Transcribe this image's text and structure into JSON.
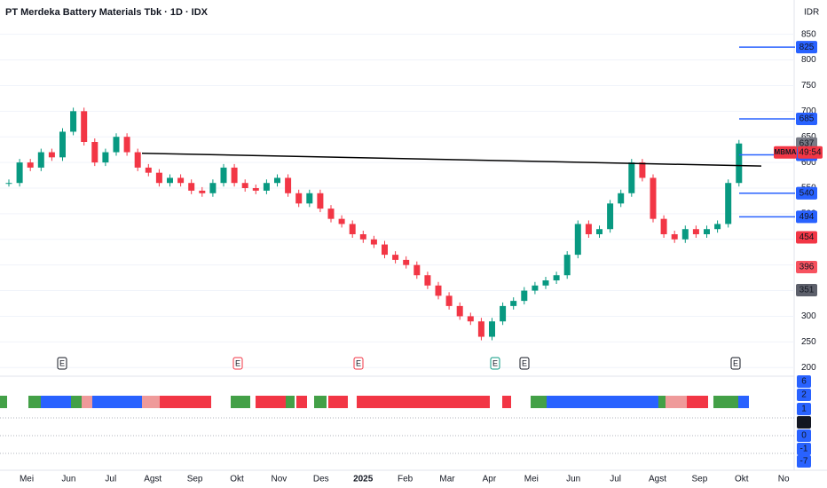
{
  "title": "PT Merdeka Battery Materials Tbk · 1D · IDX",
  "currency": "IDR",
  "symbol_badge": "MBMA",
  "countdown": "49:54",
  "earnings_markers": [
    "E",
    "E",
    "E",
    "E",
    "E",
    "E"
  ],
  "chart_data": {
    "type": "candlestick",
    "months": [
      "Mei",
      "Jun",
      "Jul",
      "Agst",
      "Sep",
      "Okt",
      "Nov",
      "Des",
      "2025",
      "Feb",
      "Mar",
      "Apr",
      "Mei",
      "Jun",
      "Jul",
      "Agst",
      "Sep",
      "Okt",
      "No"
    ],
    "values": [
      560,
      600,
      590,
      620,
      610,
      660,
      700,
      640,
      600,
      620,
      650,
      620,
      590,
      580,
      560,
      570,
      560,
      545,
      540,
      560,
      590,
      560,
      550,
      545,
      560,
      570,
      540,
      520,
      540,
      510,
      490,
      480,
      460,
      450,
      440,
      420,
      410,
      400,
      380,
      360,
      340,
      320,
      300,
      290,
      260,
      290,
      320,
      330,
      350,
      360,
      370,
      380,
      420,
      480,
      460,
      470,
      520,
      540,
      600,
      570,
      490,
      460,
      450,
      470,
      460,
      470,
      480,
      560,
      637
    ],
    "up_color": "#089981",
    "down_color": "#f23645",
    "ylim": [
      190,
      865
    ],
    "yticks": [
      200,
      250,
      300,
      350,
      400,
      450,
      500,
      550,
      600,
      650,
      700,
      750,
      800,
      850
    ],
    "trendline": {
      "values": [
        618,
        593
      ],
      "color": "#000000"
    },
    "price_labels": [
      {
        "value": 825,
        "color": "#2962ff"
      },
      {
        "value": 685,
        "color": "#2962ff"
      },
      {
        "value": 637,
        "color": "#787b86"
      },
      {
        "value": 615,
        "color": "#2962ff"
      },
      {
        "value": 540,
        "color": "#2962ff"
      },
      {
        "value": 540,
        "color": "#2962ff"
      },
      {
        "value": 494,
        "color": "#2962ff"
      },
      {
        "value": 454,
        "color": "#f23645"
      },
      {
        "value": 396,
        "color": "#f7525f"
      },
      {
        "value": 351,
        "color": "#5d606b"
      }
    ],
    "oscillator_labels": [
      {
        "value": 6,
        "color": "#2962ff"
      },
      {
        "value": 2,
        "color": "#2962ff"
      },
      {
        "value": 1,
        "color": "#2962ff"
      },
      {
        "value": 0,
        "color": "#131722"
      },
      {
        "value": 0,
        "color": "#2962ff"
      },
      {
        "value": -1,
        "color": "#2962ff"
      },
      {
        "value": -7,
        "color": "#2962ff"
      }
    ]
  }
}
